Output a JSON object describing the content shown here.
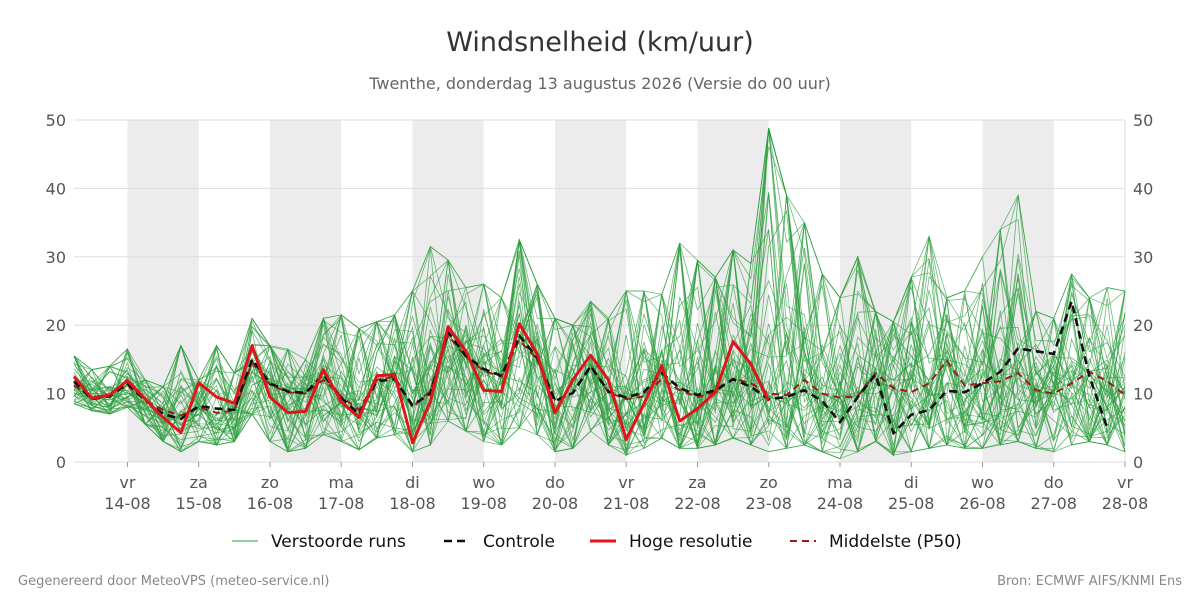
{
  "title": "Windsnelheid (km/uur)",
  "subtitle": "Twenthe, donderdag 13 augustus 2026 (Versie do 00 uur)",
  "footer": {
    "left": "Gegenereerd door MeteoVPS (meteo-service.nl)",
    "right": "Bron: ECMWF AIFS/KNMI Ens"
  },
  "legend": [
    {
      "label": "Verstoorde runs",
      "color": "#2e9e3e",
      "style": "thin"
    },
    {
      "label": "Controle",
      "color": "#111111",
      "style": "dashed"
    },
    {
      "label": "Hoge resolutie",
      "color": "#e0151c",
      "style": "solid"
    },
    {
      "label": "Middelste (P50)",
      "color": "#9b1b1b",
      "style": "dashed"
    }
  ],
  "colors": {
    "ensemble": "#2e9e3e",
    "controle": "#111111",
    "hoge_resolutie": "#e0151c",
    "p50": "#9b1b1b",
    "band": "#ececec",
    "grid": "#dddddd"
  },
  "chart_data": {
    "type": "line",
    "ylim": [
      0,
      50
    ],
    "yticks": [
      0,
      10,
      20,
      30,
      40,
      50
    ],
    "xlim": [
      -0.75,
      14.0
    ],
    "x_ticks": [
      {
        "day": "vr",
        "date": "14-08"
      },
      {
        "day": "za",
        "date": "15-08"
      },
      {
        "day": "zo",
        "date": "16-08"
      },
      {
        "day": "ma",
        "date": "17-08"
      },
      {
        "day": "di",
        "date": "18-08"
      },
      {
        "day": "wo",
        "date": "19-08"
      },
      {
        "day": "do",
        "date": "20-08"
      },
      {
        "day": "vr",
        "date": "21-08"
      },
      {
        "day": "za",
        "date": "22-08"
      },
      {
        "day": "zo",
        "date": "23-08"
      },
      {
        "day": "ma",
        "date": "24-08"
      },
      {
        "day": "di",
        "date": "25-08"
      },
      {
        "day": "wo",
        "date": "26-08"
      },
      {
        "day": "do",
        "date": "27-08"
      },
      {
        "day": "vr",
        "date": "28-08"
      }
    ],
    "shaded_days": [
      0,
      2,
      4,
      6,
      8,
      10,
      12
    ],
    "step_days": 0.25,
    "x_start": -0.75,
    "hoge_resolutie": [
      12.5,
      9.3,
      9.8,
      11.9,
      9.2,
      6.5,
      4.3,
      11.6,
      9.5,
      8.6,
      17.0,
      9.5,
      7.2,
      7.4,
      13.5,
      8.8,
      6.5,
      12.6,
      12.8,
      2.8,
      8.8,
      19.8,
      16.2,
      10.5,
      10.3,
      20.2,
      15.8,
      7.2,
      12.0,
      15.6,
      12.0,
      3.3,
      8.5,
      14.1,
      6.0,
      7.8,
      10.2,
      17.6,
      14.3,
      8.9
    ],
    "controle": [
      11.8,
      9.2,
      9.6,
      11.5,
      9.0,
      7.0,
      6.3,
      8.2,
      7.8,
      7.6,
      15.0,
      11.5,
      10.3,
      10.1,
      12.8,
      9.4,
      7.0,
      11.8,
      12.1,
      8.3,
      10.0,
      19.0,
      15.5,
      13.6,
      12.6,
      18.5,
      15.2,
      8.9,
      10.1,
      14.0,
      10.3,
      9.4,
      10.2,
      13.0,
      10.8,
      9.8,
      10.5,
      12.1,
      11.0,
      9.2,
      9.5,
      10.5,
      8.9,
      5.8,
      9.5,
      12.8,
      4.2,
      6.9,
      7.6,
      10.4,
      10.2,
      11.5,
      13.2,
      16.6,
      16.2,
      15.8,
      23.5,
      12.5,
      5.0
    ],
    "p50": [
      11.2,
      9.5,
      9.8,
      11.2,
      9.0,
      7.6,
      6.8,
      8.0,
      7.2,
      7.5,
      14.5,
      11.3,
      10.2,
      10.0,
      12.0,
      9.6,
      7.6,
      12.0,
      12.5,
      8.0,
      10.4,
      18.5,
      15.4,
      13.3,
      12.5,
      17.8,
      15.0,
      9.0,
      10.0,
      14.0,
      10.2,
      9.2,
      9.6,
      12.2,
      10.5,
      9.5,
      10.2,
      12.2,
      11.5,
      10.0,
      9.8,
      12.0,
      10.0,
      9.4,
      9.6,
      13.0,
      10.8,
      10.2,
      11.5,
      14.8,
      11.2,
      11.5,
      11.8,
      13.0,
      10.5,
      10.0,
      11.5,
      13.2,
      11.8,
      9.8
    ],
    "ensemble_spread": {
      "min": [
        8.5,
        7.5,
        7.0,
        8.0,
        5.5,
        3.0,
        1.5,
        3.0,
        2.5,
        3.0,
        7.0,
        3.0,
        1.5,
        2.0,
        4.0,
        3.0,
        1.8,
        3.5,
        4.0,
        1.5,
        2.5,
        6.0,
        4.5,
        3.0,
        2.5,
        5.0,
        4.0,
        1.5,
        2.0,
        4.5,
        2.5,
        1.0,
        2.0,
        3.5,
        2.0,
        2.0,
        2.5,
        3.5,
        2.5,
        1.5,
        2.0,
        2.5,
        1.5,
        0.5,
        1.5,
        3.0,
        1.0,
        1.5,
        2.0,
        2.5,
        2.0,
        2.0,
        2.5,
        3.0,
        2.0,
        1.5,
        2.5,
        3.0,
        2.5,
        1.5
      ],
      "max": [
        15.5,
        13.5,
        14.0,
        16.5,
        12.0,
        11.0,
        17.0,
        12.0,
        17.0,
        13.0,
        21.0,
        17.0,
        16.5,
        15.0,
        21.0,
        21.5,
        19.5,
        20.5,
        21.5,
        25.0,
        31.5,
        29.5,
        25.5,
        26.0,
        24.0,
        32.5,
        26.0,
        21.0,
        20.0,
        23.5,
        21.0,
        25.0,
        25.0,
        24.5,
        32.0,
        29.5,
        27.0,
        31.0,
        29.0,
        48.8,
        39.0,
        35.0,
        27.5,
        24.0,
        30.0,
        22.0,
        20.5,
        27.0,
        33.0,
        24.0,
        25.0,
        30.0,
        34.0,
        39.0,
        22.0,
        21.0,
        27.5,
        24.0,
        25.5,
        25.0
      ]
    },
    "ensemble_members": 50
  }
}
